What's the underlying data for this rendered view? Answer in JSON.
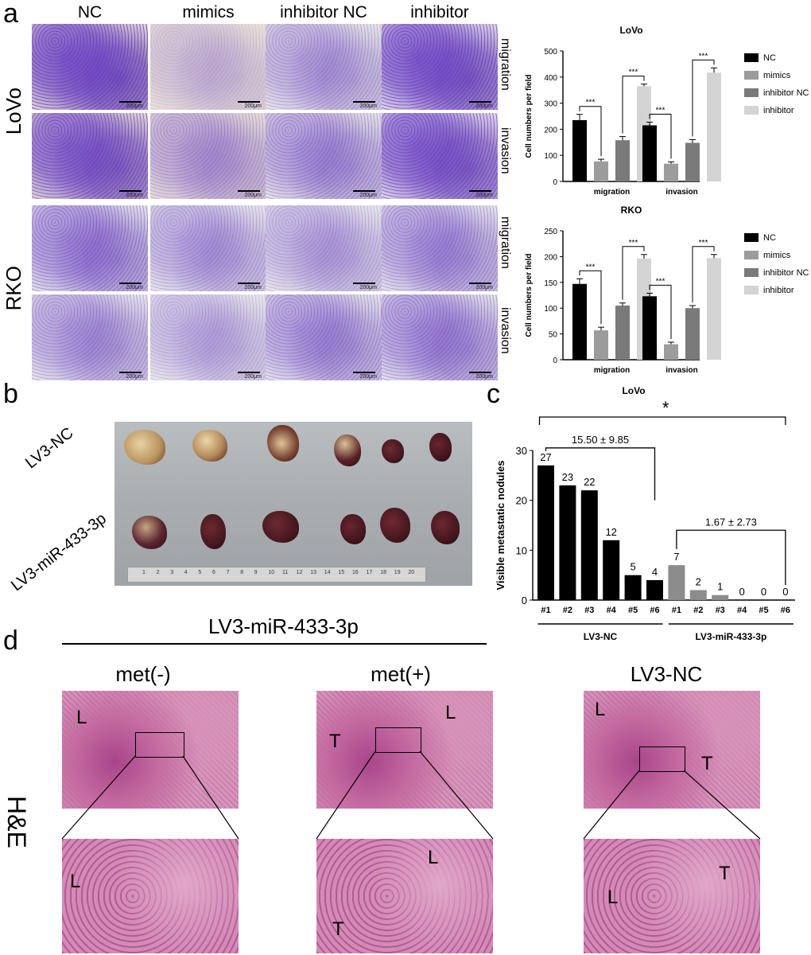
{
  "panels": {
    "a": "a",
    "b": "b",
    "c": "c",
    "d": "d"
  },
  "panel_a": {
    "columns": [
      "NC",
      "mimics",
      "inhibitor NC",
      "inhibitor"
    ],
    "cell_lines": [
      "LoVo",
      "RKO"
    ],
    "assays": [
      "migration",
      "invasion",
      "migration",
      "invasion"
    ],
    "scalebar": "200μm"
  },
  "panel_b": {
    "row_labels": [
      "LV3-NC",
      "LV3-miR-433-3p"
    ],
    "ruler_numbers": [
      "1",
      "2",
      "3",
      "4",
      "5",
      "6",
      "7",
      "8",
      "9",
      "10",
      "11",
      "12",
      "13",
      "14",
      "15",
      "16",
      "17",
      "18",
      "19",
      "20"
    ]
  },
  "panel_d": {
    "header": "LV3-miR-433-3p",
    "titles": [
      "met(-)",
      "met(+)",
      "LV3-NC"
    ],
    "stain": "H&E",
    "tissue_labels": {
      "liver": "L",
      "tumor": "T"
    }
  },
  "colors": {
    "NC": "#000000",
    "mimics": "#9c9c9c",
    "inhibitor NC": "#7a7a7a",
    "inhibitor": "#d4d4d4",
    "crystal_violet": "#6a3ec2",
    "he_pink": "#c8659a"
  },
  "chart_data": [
    {
      "type": "bar",
      "title": "LoVo",
      "ylabel": "Cell numbers per field",
      "categories": [
        "migration",
        "invasion"
      ],
      "ylim": [
        0,
        500
      ],
      "yticks": [
        "0",
        "100",
        "200",
        "300",
        "400",
        "500"
      ],
      "series": [
        {
          "name": "NC",
          "values": [
            235,
            215
          ],
          "errors": [
            22,
            12
          ]
        },
        {
          "name": "mimics",
          "values": [
            77,
            68
          ],
          "errors": [
            8,
            7
          ]
        },
        {
          "name": "inhibitor NC",
          "values": [
            158,
            148
          ],
          "errors": [
            14,
            12
          ]
        },
        {
          "name": "inhibitor",
          "values": [
            365,
            417
          ],
          "errors": [
            8,
            18
          ]
        }
      ],
      "significance": "***",
      "comparisons": [
        [
          0,
          1
        ],
        [
          2,
          3
        ]
      ],
      "legend": "right"
    },
    {
      "type": "bar",
      "title": "RKO",
      "ylabel": "Cell numbers per field",
      "categories": [
        "migration",
        "invasion"
      ],
      "ylim": [
        0,
        250
      ],
      "yticks": [
        "0",
        "50",
        "100",
        "150",
        "200",
        "250"
      ],
      "series": [
        {
          "name": "NC",
          "values": [
            147,
            123
          ],
          "errors": [
            10,
            6
          ]
        },
        {
          "name": "mimics",
          "values": [
            57,
            30
          ],
          "errors": [
            6,
            4
          ]
        },
        {
          "name": "inhibitor NC",
          "values": [
            105,
            100
          ],
          "errors": [
            5,
            5
          ]
        },
        {
          "name": "inhibitor",
          "values": [
            196,
            197
          ],
          "errors": [
            8,
            7
          ]
        }
      ],
      "significance": "***",
      "comparisons": [
        [
          0,
          1
        ],
        [
          2,
          3
        ]
      ],
      "legend": "right"
    },
    {
      "type": "bar",
      "title": "LoVo",
      "ylabel": "Visible metastatic nodules",
      "categories": [
        "#1",
        "#2",
        "#3",
        "#4",
        "#5",
        "#6",
        "#1",
        "#2",
        "#3",
        "#4",
        "#5",
        "#6"
      ],
      "values": [
        27,
        23,
        22,
        12,
        5,
        4,
        7,
        2,
        1,
        0,
        0,
        0
      ],
      "value_labels": [
        "27",
        "23",
        "22",
        "12",
        "5",
        "4",
        "7",
        "2",
        "1",
        "0",
        "0",
        "0"
      ],
      "groups": [
        {
          "name": "LV3-NC",
          "color": "#000000"
        },
        {
          "name": "LV3-miR-433-3p",
          "color": "#8c8c8c"
        }
      ],
      "ylim": [
        0,
        30
      ],
      "yticks": [
        "0",
        "10",
        "20",
        "30"
      ],
      "annotations": {
        "group1": "15.50 ± 9.85",
        "group2": "1.67 ± 2.73",
        "overall": "*"
      }
    }
  ]
}
